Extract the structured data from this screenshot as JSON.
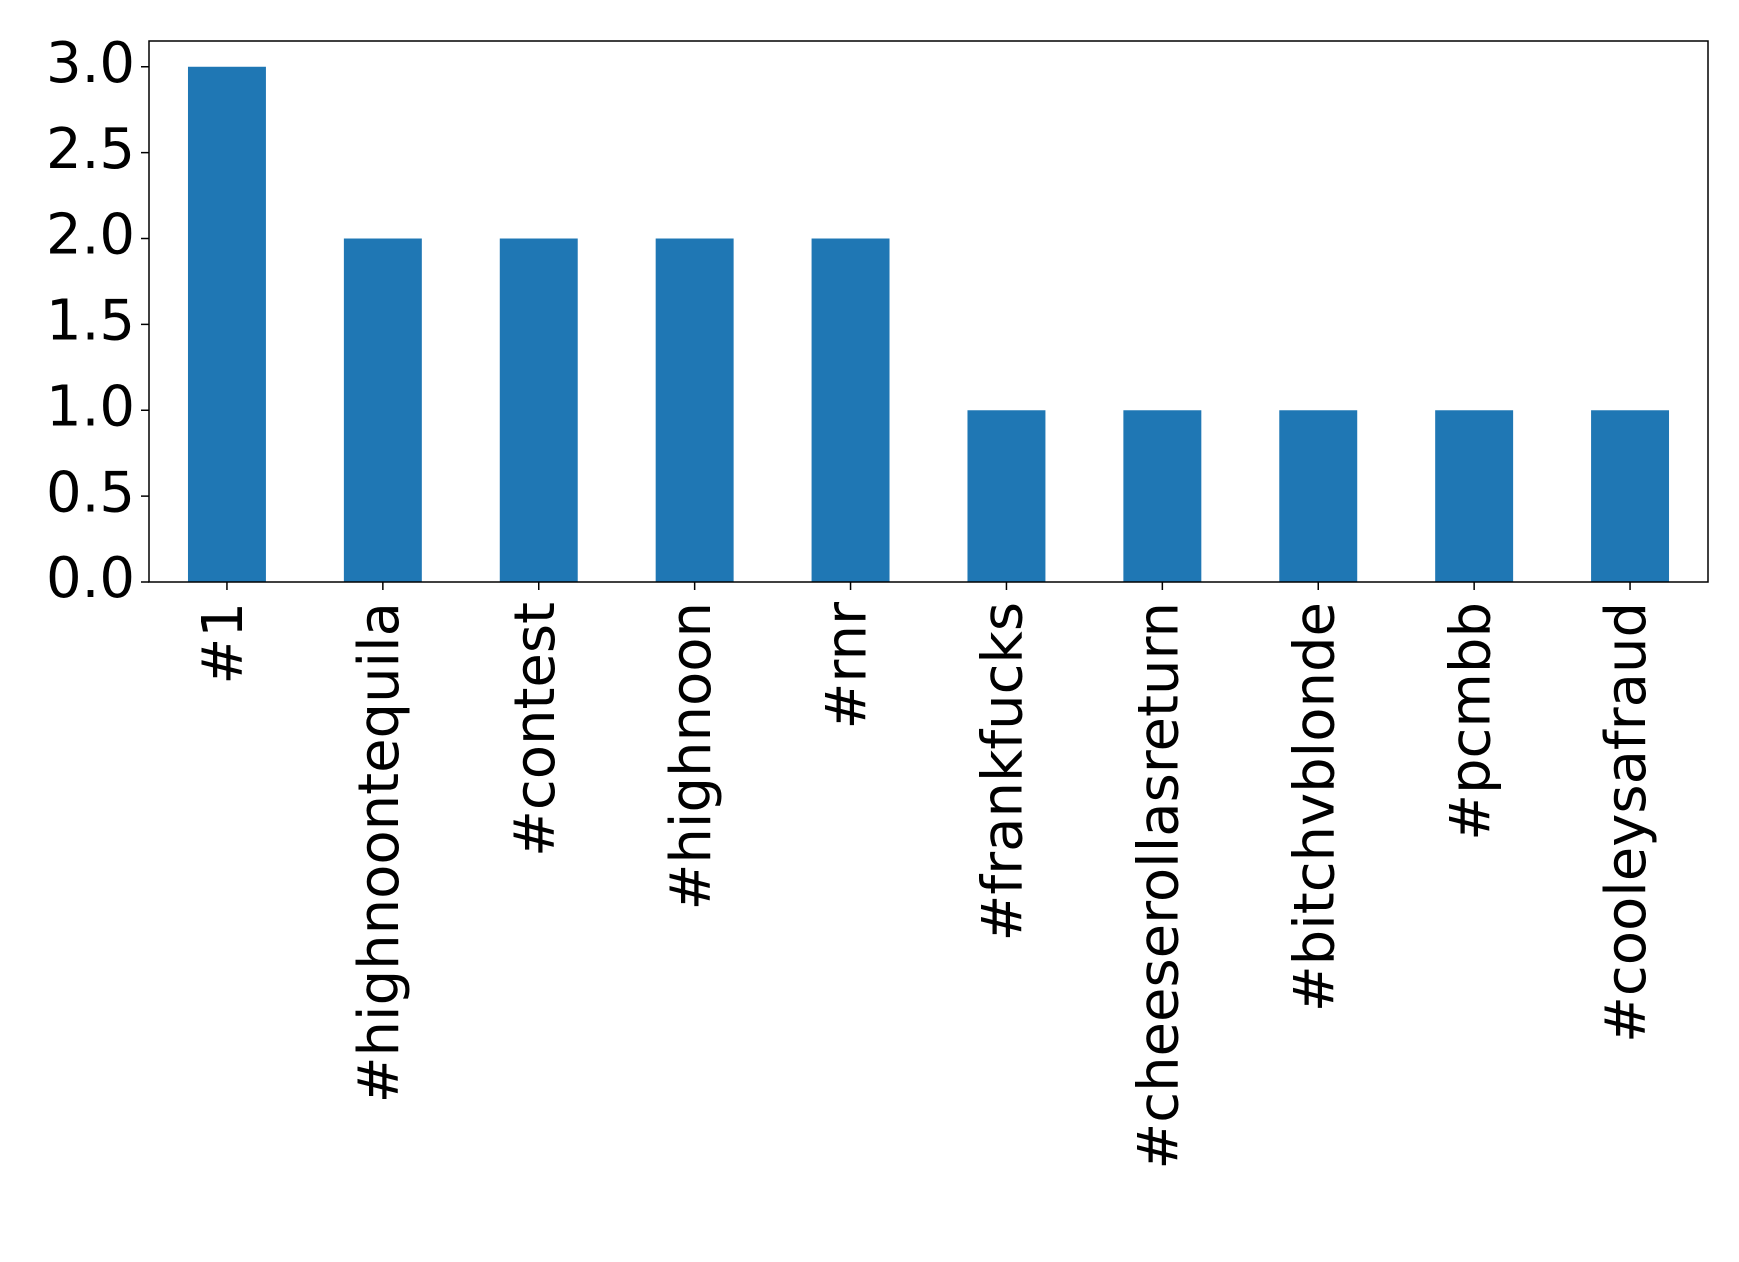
{
  "chart_data": {
    "type": "bar",
    "categories": [
      "#1",
      "#highnoontequila",
      "#contest",
      "#highnoon",
      "#rnr",
      "#frankfucks",
      "#cheeserollasreturn",
      "#bitchvblonde",
      "#pcmbb",
      "#cooleysafraud"
    ],
    "values": [
      3,
      2,
      2,
      2,
      2,
      1,
      1,
      1,
      1,
      1
    ],
    "color": "#1f77b4",
    "ylim": [
      0,
      3.15
    ],
    "yticks": [
      {
        "value": 0,
        "label": "0.0"
      },
      0.5,
      {
        "value": 1,
        "label": "1.0"
      },
      1.5,
      {
        "value": 2,
        "label": "2.0"
      },
      2.5,
      {
        "value": 3,
        "label": "3.0"
      }
    ],
    "grid": false
  }
}
